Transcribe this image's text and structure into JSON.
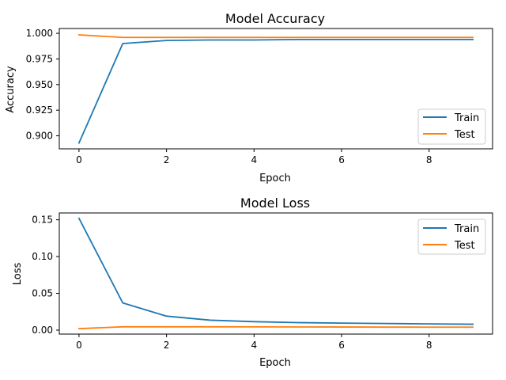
{
  "chart_data": [
    {
      "type": "line",
      "title": "Model Accuracy",
      "xlabel": "Epoch",
      "ylabel": "Accuracy",
      "x": [
        0,
        1,
        2,
        3,
        4,
        5,
        6,
        7,
        8,
        9
      ],
      "xlim": [
        -0.45,
        9.45
      ],
      "ylim": [
        0.8873,
        1.0047
      ],
      "xticks": [
        0,
        2,
        4,
        6,
        8
      ],
      "xtick_labels": [
        "0",
        "2",
        "4",
        "6",
        "8"
      ],
      "yticks": [
        0.9,
        0.925,
        0.95,
        0.975,
        1.0
      ],
      "ytick_labels": [
        "0.900",
        "0.925",
        "0.950",
        "0.975",
        "1.000"
      ],
      "grid": false,
      "legend_position": "lower-right",
      "series": [
        {
          "name": "Train",
          "color": "#1f77b4",
          "values": [
            0.893,
            0.99,
            0.993,
            0.9935,
            0.9935,
            0.994,
            0.994,
            0.994,
            0.994,
            0.994
          ]
        },
        {
          "name": "Test",
          "color": "#ff7f0e",
          "values": [
            0.9985,
            0.996,
            0.996,
            0.996,
            0.996,
            0.996,
            0.996,
            0.996,
            0.996,
            0.996
          ]
        }
      ]
    },
    {
      "type": "line",
      "title": "Model Loss",
      "xlabel": "Epoch",
      "ylabel": "Loss",
      "x": [
        0,
        1,
        2,
        3,
        4,
        5,
        6,
        7,
        8,
        9
      ],
      "xlim": [
        -0.45,
        9.45
      ],
      "ylim": [
        -0.0054,
        0.1593
      ],
      "xticks": [
        0,
        2,
        4,
        6,
        8
      ],
      "xtick_labels": [
        "0",
        "2",
        "4",
        "6",
        "8"
      ],
      "yticks": [
        0.0,
        0.05,
        0.1,
        0.15
      ],
      "ytick_labels": [
        "0.00",
        "0.05",
        "0.10",
        "0.15"
      ],
      "grid": false,
      "legend_position": "upper-right",
      "series": [
        {
          "name": "Train",
          "color": "#1f77b4",
          "values": [
            0.152,
            0.037,
            0.019,
            0.0135,
            0.0115,
            0.0102,
            0.0095,
            0.009,
            0.0085,
            0.008
          ]
        },
        {
          "name": "Test",
          "color": "#ff7f0e",
          "values": [
            0.002,
            0.0045,
            0.0045,
            0.0045,
            0.0044,
            0.0043,
            0.0042,
            0.0041,
            0.004,
            0.004
          ]
        }
      ]
    }
  ]
}
